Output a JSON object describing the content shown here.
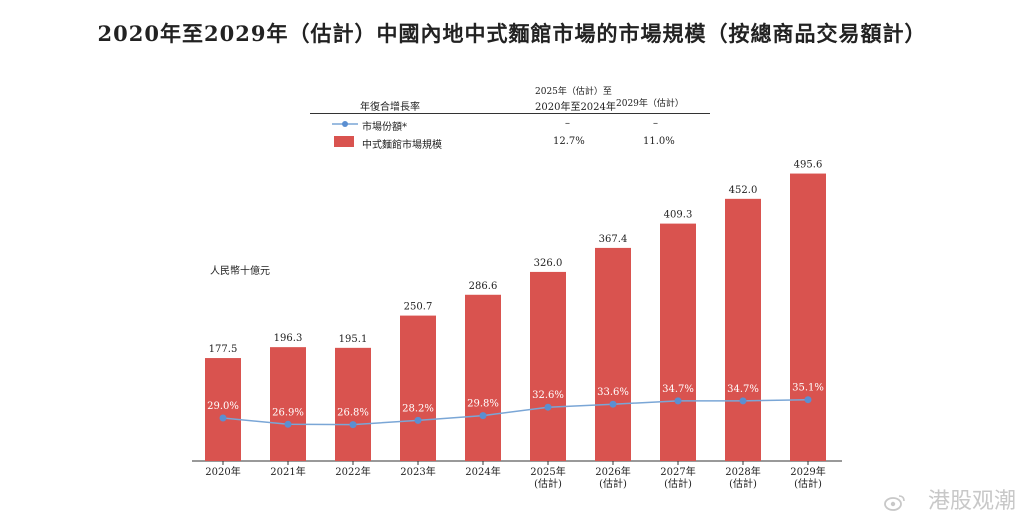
{
  "title": "2020年至2029年（估計）中國內地中式麵館市場的市場規模（按總商品交易額計）",
  "legend": {
    "header": "年復合增長率",
    "col1": "2020年至2024年",
    "col2_line1": "2025年（估計）至",
    "col2_line2": "2029年（估計）",
    "rows": [
      {
        "name": "市場份額*",
        "col1": "–",
        "col2": "–"
      },
      {
        "name": "中式麵館市場規模",
        "col1": "12.7%",
        "col2": "11.0%"
      }
    ]
  },
  "unit_label": "人民幣十億元",
  "watermark": "港股观潮",
  "colors": {
    "bar": "#d9534f",
    "line": "#7aa6d6",
    "point": "#5b8fd1"
  },
  "chart_data": {
    "type": "bar",
    "categories": [
      "2020年",
      "2021年",
      "2022年",
      "2023年",
      "2024年",
      "2025年",
      "2026年",
      "2027年",
      "2028年",
      "2029年"
    ],
    "category_sublabels": [
      "",
      "",
      "",
      "",
      "",
      "(估計)",
      "(估計)",
      "(估計)",
      "(估計)",
      "(估計)"
    ],
    "series": [
      {
        "name": "中式麵館市場規模",
        "type": "bar",
        "values": [
          177.5,
          196.3,
          195.1,
          250.7,
          286.6,
          326.0,
          367.4,
          409.3,
          452.0,
          495.6
        ],
        "labels": [
          "177.5",
          "196.3",
          "195.1",
          "250.7",
          "286.6",
          "326.0",
          "367.4",
          "409.3",
          "452.0",
          "495.6"
        ]
      },
      {
        "name": "市場份額*",
        "type": "line",
        "values": [
          29.0,
          26.9,
          26.8,
          28.2,
          29.8,
          32.6,
          33.6,
          34.7,
          34.7,
          35.1
        ],
        "labels": [
          "29.0%",
          "26.9%",
          "26.8%",
          "28.2%",
          "29.8%",
          "32.6%",
          "33.6%",
          "34.7%",
          "34.7%",
          "35.1%"
        ]
      }
    ],
    "ylabel": "人民幣十億元",
    "ylim": [
      0,
      520
    ],
    "grid": false
  }
}
